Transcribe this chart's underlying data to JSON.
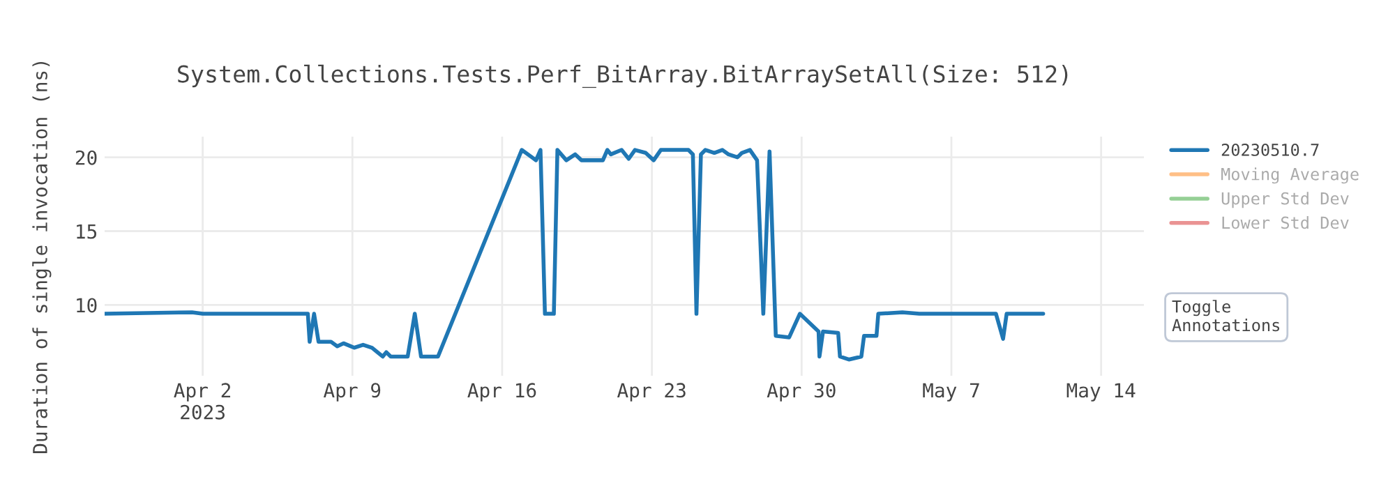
{
  "chart_data": {
    "type": "line",
    "title": "System.Collections.Tests.Perf_BitArray.BitArraySetAll(Size: 512)",
    "ylabel": "Duration of single invocation (ns)",
    "x": [
      "2023-03-28T10:00",
      "2023-04-01T12:00",
      "2023-04-02T00:00",
      "2023-04-06T22:00",
      "2023-04-07T00:00",
      "2023-04-07T05:00",
      "2023-04-07T10:00",
      "2023-04-08T00:00",
      "2023-04-08T07:00",
      "2023-04-08T14:00",
      "2023-04-08T22:00",
      "2023-04-09T02:00",
      "2023-04-09T12:00",
      "2023-04-09T22:00",
      "2023-04-10T10:00",
      "2023-04-10T14:00",
      "2023-04-10T19:00",
      "2023-04-11T14:00",
      "2023-04-11T22:00",
      "2023-04-12T05:00",
      "2023-04-13T00:00",
      "2023-04-16T22:00",
      "2023-04-17T14:00",
      "2023-04-17T19:00",
      "2023-04-18T00:00",
      "2023-04-18T10:00",
      "2023-04-18T14:00",
      "2023-04-19T00:00",
      "2023-04-19T10:00",
      "2023-04-19T17:00",
      "2023-04-20T17:00",
      "2023-04-20T22:00",
      "2023-04-21T02:00",
      "2023-04-21T14:00",
      "2023-04-21T22:00",
      "2023-04-22T05:00",
      "2023-04-22T17:00",
      "2023-04-23T02:00",
      "2023-04-23T10:00",
      "2023-04-24T17:00",
      "2023-04-24T22:00",
      "2023-04-25T02:00",
      "2023-04-25T07:00",
      "2023-04-25T12:00",
      "2023-04-25T22:00",
      "2023-04-26T07:00",
      "2023-04-26T14:00",
      "2023-04-27T00:00",
      "2023-04-27T05:00",
      "2023-04-27T14:00",
      "2023-04-27T22:00",
      "2023-04-28T05:00",
      "2023-04-28T12:00",
      "2023-04-28T19:00",
      "2023-04-29T10:00",
      "2023-04-29T22:00",
      "2023-04-30T19:00",
      "2023-04-30T20:00",
      "2023-05-01T00:00",
      "2023-05-01T17:00",
      "2023-05-01T19:00",
      "2023-05-02T05:00",
      "2023-05-02T19:00",
      "2023-05-02T22:00",
      "2023-05-03T12:00",
      "2023-05-03T14:00",
      "2023-05-04T17:00",
      "2023-05-05T12:00",
      "2023-05-09T02:00",
      "2023-05-09T10:00",
      "2023-05-09T14:00",
      "2023-05-11T07:00"
    ],
    "series": [
      {
        "name": "20230510.7",
        "color": "#1f77b4",
        "values": [
          9.4,
          9.5,
          9.4,
          9.4,
          7.5,
          9.4,
          7.5,
          7.5,
          7.2,
          7.4,
          7.2,
          7.1,
          7.3,
          7.1,
          6.5,
          6.8,
          6.5,
          6.5,
          9.4,
          6.5,
          6.5,
          20.5,
          19.8,
          20.5,
          9.4,
          9.4,
          20.5,
          19.8,
          20.2,
          19.8,
          19.8,
          20.5,
          20.2,
          20.5,
          19.9,
          20.5,
          20.3,
          19.8,
          20.5,
          20.5,
          20.2,
          9.4,
          20.2,
          20.5,
          20.3,
          20.5,
          20.2,
          20.0,
          20.3,
          20.5,
          19.8,
          9.4,
          20.4,
          7.9,
          7.8,
          9.4,
          8.2,
          6.5,
          8.2,
          8.1,
          6.5,
          6.3,
          6.5,
          7.9,
          7.9,
          9.4,
          9.5,
          9.4,
          9.4,
          7.7,
          9.4,
          9.4
        ]
      },
      {
        "name": "Moving Average",
        "color": "#ff7f0e",
        "values": [
          null,
          null,
          null,
          null,
          null,
          null,
          null,
          null,
          null,
          null,
          null,
          null,
          null,
          null,
          null,
          null,
          null,
          null,
          null,
          null,
          null,
          null,
          null,
          null,
          null,
          null,
          null,
          null,
          null,
          null,
          null,
          null,
          null,
          null,
          null,
          null,
          null,
          null,
          null,
          null,
          null,
          null,
          null,
          null,
          null,
          null,
          null,
          null,
          null,
          null,
          null,
          null,
          null,
          null,
          null,
          null,
          null,
          null,
          null,
          null,
          null,
          null,
          null,
          null,
          null,
          null,
          null,
          null,
          null,
          null,
          null,
          null
        ]
      },
      {
        "name": "Upper Std Dev",
        "color": "#2ca02c",
        "values": [
          null,
          null,
          null,
          null,
          null,
          null,
          null,
          null,
          null,
          null,
          null,
          null,
          null,
          null,
          null,
          null,
          null,
          null,
          null,
          null,
          null,
          null,
          null,
          null,
          null,
          null,
          null,
          null,
          null,
          null,
          null,
          null,
          null,
          null,
          null,
          null,
          null,
          null,
          null,
          null,
          null,
          null,
          null,
          null,
          null,
          null,
          null,
          null,
          null,
          null,
          null,
          null,
          null,
          null,
          null,
          null,
          null,
          null,
          null,
          null,
          null,
          null,
          null,
          null,
          null,
          null,
          null,
          null,
          null,
          null,
          null,
          null
        ]
      },
      {
        "name": "Lower Std Dev",
        "color": "#d62728",
        "values": [
          null,
          null,
          null,
          null,
          null,
          null,
          null,
          null,
          null,
          null,
          null,
          null,
          null,
          null,
          null,
          null,
          null,
          null,
          null,
          null,
          null,
          null,
          null,
          null,
          null,
          null,
          null,
          null,
          null,
          null,
          null,
          null,
          null,
          null,
          null,
          null,
          null,
          null,
          null,
          null,
          null,
          null,
          null,
          null,
          null,
          null,
          null,
          null,
          null,
          null,
          null,
          null,
          null,
          null,
          null,
          null,
          null,
          null,
          null,
          null,
          null,
          null,
          null,
          null,
          null,
          null,
          null,
          null,
          null,
          null,
          null,
          null
        ]
      }
    ],
    "xlim": [
      "2023-03-28T10:00",
      "2023-05-16T00:00"
    ],
    "xticks": [
      {
        "value": "2023-04-02",
        "label": "Apr 2\n2023"
      },
      {
        "value": "2023-04-09",
        "label": "Apr 9"
      },
      {
        "value": "2023-04-16",
        "label": "Apr 16"
      },
      {
        "value": "2023-04-23",
        "label": "Apr 23"
      },
      {
        "value": "2023-04-30",
        "label": "Apr 30"
      },
      {
        "value": "2023-05-07",
        "label": "May 7"
      },
      {
        "value": "2023-05-14",
        "label": "May 14"
      }
    ],
    "ylim": [
      5.2,
      21.4
    ],
    "yticks": [
      10,
      15,
      20
    ],
    "grid": true,
    "legend": "right",
    "line_style": "solid",
    "annotations": [
      "Toggle\nAnnotations"
    ]
  }
}
